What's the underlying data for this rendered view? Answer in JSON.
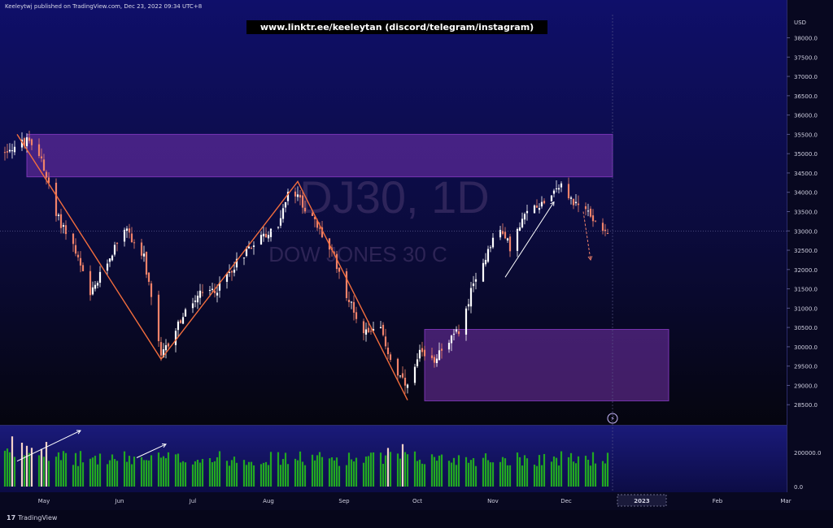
{
  "header": {
    "publisher": "Keeleytwj published on TradingView.com, Dec 23, 2022 09:34 UTC+8",
    "banner": "www.linktr.ee/keeleytan (discord/telegram/instagram)"
  },
  "footer": {
    "logo_mark": "17",
    "logo_text": "TradingView"
  },
  "colors": {
    "up": "#ffffff",
    "down": "#f0826a",
    "volume_up": "#22a822",
    "volume_hl": "#f4d2c8",
    "zone": "#8c3cc8",
    "pattern_line": "#f26d3d",
    "trend_arrow": "#ffffff",
    "watermark": "#4a3a70",
    "axis_text": "#d0d0e0"
  },
  "chart_data": {
    "type": "candlestick",
    "currency": "USD",
    "watermark": {
      "symbol": "DJ30, 1D",
      "name": "DOW JONES 30 C"
    },
    "ylim": [
      28000,
      38600
    ],
    "price_ticks": [
      38000,
      37500,
      37000,
      36500,
      36000,
      35500,
      35000,
      34500,
      34000,
      33500,
      33000,
      32500,
      32000,
      31500,
      31000,
      30500,
      30000,
      29500,
      29000,
      28500
    ],
    "price_tick_labels": [
      "38000.0",
      "37500.0",
      "37000.0",
      "36500.0",
      "36000.0",
      "35500.0",
      "35000.0",
      "34500.0",
      "34000.0",
      "33500.0",
      "33000.0",
      "32500.0",
      "32000.0",
      "31500.0",
      "31000.0",
      "30500.0",
      "30000.0",
      "29500.0",
      "29000.0",
      "28500.0"
    ],
    "volume_ticks": [
      200000,
      0
    ],
    "volume_tick_labels": [
      "200000.0",
      "0.0"
    ],
    "volume_ylim": [
      0,
      340000
    ],
    "time_ticks": [
      {
        "label": "May",
        "day": 9
      },
      {
        "label": "Jun",
        "day": 40
      },
      {
        "label": "Jul",
        "day": 70
      },
      {
        "label": "Aug",
        "day": 101
      },
      {
        "label": "Sep",
        "day": 132
      },
      {
        "label": "Oct",
        "day": 162
      },
      {
        "label": "Nov",
        "day": 193
      },
      {
        "label": "Dec",
        "day": 223
      },
      {
        "label": "2023",
        "day": 254
      },
      {
        "label": "Feb",
        "day": 285
      },
      {
        "label": "Mar",
        "day": 313
      }
    ],
    "last_price": 33000,
    "zones": [
      {
        "from_day": 2,
        "to_day": 242,
        "top": 35500,
        "bottom": 34400
      },
      {
        "from_day": 165,
        "to_day": 265,
        "top": 30450,
        "bottom": 28600
      }
    ],
    "pattern_lines": [
      {
        "points": [
          [
            -2,
            35500
          ],
          [
            57,
            29680
          ],
          [
            113,
            34280
          ],
          [
            158,
            28620
          ]
        ]
      }
    ],
    "trend_arrows": [
      {
        "from": [
          -2,
          29200
        ],
        "to": [
          24,
          30200
        ],
        "pane": "volume",
        "v_from": 150000,
        "v_to": 330000
      },
      {
        "from": [
          47,
          0
        ],
        "to": [
          59,
          0
        ],
        "pane": "volume",
        "v_from": 170000,
        "v_to": 250000
      },
      {
        "from": [
          198,
          31800
        ],
        "to": [
          218,
          33750
        ],
        "pane": "price"
      },
      {
        "from": [
          230,
          33500
        ],
        "to": [
          233,
          32250
        ],
        "pane": "price",
        "dashed": true,
        "color": "down"
      }
    ],
    "anchors": [
      [
        -11,
        35000
      ],
      [
        2,
        35300
      ],
      [
        8,
        34900
      ],
      [
        14,
        33400
      ],
      [
        20,
        32800
      ],
      [
        28,
        31300
      ],
      [
        35,
        32200
      ],
      [
        42,
        33100
      ],
      [
        50,
        32300
      ],
      [
        57,
        29700
      ],
      [
        64,
        30600
      ],
      [
        72,
        31300
      ],
      [
        80,
        31500
      ],
      [
        88,
        32200
      ],
      [
        96,
        32800
      ],
      [
        104,
        33000
      ],
      [
        110,
        34100
      ],
      [
        115,
        33700
      ],
      [
        122,
        33000
      ],
      [
        128,
        32300
      ],
      [
        134,
        31200
      ],
      [
        140,
        30400
      ],
      [
        146,
        30600
      ],
      [
        152,
        29500
      ],
      [
        158,
        28900
      ],
      [
        163,
        29800
      ],
      [
        168,
        29600
      ],
      [
        172,
        30000
      ],
      [
        176,
        30200
      ],
      [
        180,
        30500
      ],
      [
        184,
        31400
      ],
      [
        188,
        32000
      ],
      [
        192,
        32700
      ],
      [
        196,
        33000
      ],
      [
        200,
        32600
      ],
      [
        204,
        33100
      ],
      [
        208,
        33600
      ],
      [
        212,
        33700
      ],
      [
        216,
        33900
      ],
      [
        220,
        34200
      ],
      [
        224,
        33900
      ],
      [
        228,
        33600
      ],
      [
        232,
        33500
      ],
      [
        236,
        33200
      ],
      [
        240,
        33000
      ]
    ],
    "last_day": 240,
    "highlight_volume_days": [
      -4,
      -2,
      0,
      2,
      4,
      6,
      8,
      10,
      12,
      150,
      156
    ]
  }
}
